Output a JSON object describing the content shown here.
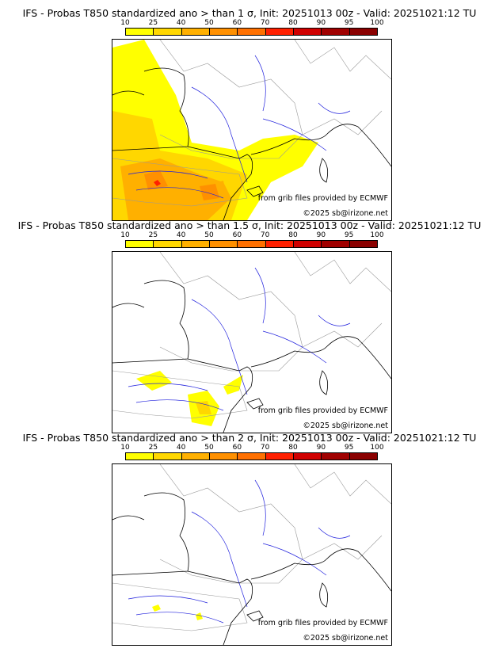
{
  "colorbar": {
    "ticks": [
      "10",
      "25",
      "40",
      "50",
      "60",
      "70",
      "80",
      "90",
      "95",
      "100"
    ],
    "colors": [
      "#ffff00",
      "#ffd700",
      "#ffb000",
      "#ff9000",
      "#ff7000",
      "#ff2000",
      "#d00000",
      "#a00000",
      "#8a0000",
      "#600000"
    ]
  },
  "panels": [
    {
      "title": "IFS - Probas T850  standardized ano > than 1 σ, Init: 20251013 00z - Valid: 20251021:12 TU",
      "credit1": "from grib files provided by ECMWF",
      "credit2": "©2025 sb@irizone.net"
    },
    {
      "title": "IFS - Probas T850  standardized ano > than 1.5 σ, Init: 20251013 00z - Valid: 20251021:12 TU",
      "credit1": "from grib files provided by ECMWF",
      "credit2": "©2025 sb@irizone.net"
    },
    {
      "title": "IFS - Probas T850  standardized ano > than 2 σ, Init: 20251013 00z - Valid: 20251021:12 TU",
      "credit1": "from grib files provided by ECMWF",
      "credit2": "©2025 sb@irizone.net"
    }
  ]
}
